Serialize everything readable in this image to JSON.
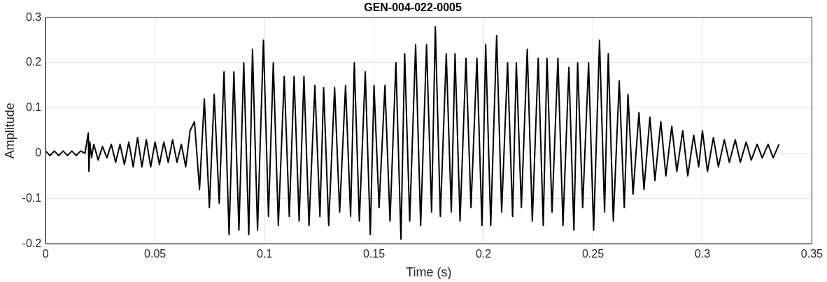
{
  "chart_data": {
    "type": "line",
    "title": "GEN-004-022-0005",
    "xlabel": "Time (s)",
    "ylabel": "Amplitude",
    "xlim": [
      0,
      0.35
    ],
    "xticks": [
      0,
      0.05,
      0.1,
      0.15,
      0.2,
      0.25,
      0.3,
      0.35
    ],
    "ylim": [
      -0.2,
      0.3
    ],
    "yticks": [
      -0.2,
      -0.1,
      0,
      0.1,
      0.2,
      0.3
    ],
    "grid": true,
    "marker": "none",
    "line_style": "solid",
    "series": [
      {
        "color": "#000000",
        "x": [
          0,
          0.002,
          0.004,
          0.006,
          0.008,
          0.01,
          0.012,
          0.014,
          0.016,
          0.018,
          0.0195,
          0.0198,
          0.0202,
          0.021,
          0.022,
          0.024,
          0.026,
          0.028,
          0.03,
          0.032,
          0.034,
          0.036,
          0.038,
          0.04,
          0.042,
          0.044,
          0.046,
          0.048,
          0.05,
          0.052,
          0.054,
          0.056,
          0.058,
          0.06,
          0.062,
          0.064,
          0.066,
          0.068,
          0.0703,
          0.0725,
          0.0748,
          0.077,
          0.0793,
          0.0815,
          0.0838,
          0.086,
          0.0883,
          0.0905,
          0.0928,
          0.0945,
          0.0968,
          0.0995,
          0.1018,
          0.104,
          0.1063,
          0.109,
          0.1113,
          0.1135,
          0.1158,
          0.118,
          0.1203,
          0.123,
          0.1253,
          0.127,
          0.1293,
          0.132,
          0.1343,
          0.137,
          0.1393,
          0.141,
          0.1433,
          0.146,
          0.1483,
          0.15,
          0.1523,
          0.155,
          0.1573,
          0.16,
          0.1623,
          0.164,
          0.1663,
          0.169,
          0.1713,
          0.174,
          0.1763,
          0.178,
          0.1803,
          0.183,
          0.1853,
          0.187,
          0.1893,
          0.192,
          0.1943,
          0.197,
          0.1993,
          0.201,
          0.2033,
          0.206,
          0.2083,
          0.211,
          0.2133,
          0.215,
          0.2173,
          0.22,
          0.2223,
          0.225,
          0.2273,
          0.229,
          0.2313,
          0.234,
          0.2363,
          0.239,
          0.2413,
          0.243,
          0.2453,
          0.248,
          0.2503,
          0.253,
          0.2553,
          0.257,
          0.2593,
          0.262,
          0.2643,
          0.266,
          0.2683,
          0.271,
          0.2733,
          0.276,
          0.2783,
          0.281,
          0.2833,
          0.286,
          0.2883,
          0.291,
          0.2933,
          0.296,
          0.2983,
          0.3,
          0.3023,
          0.305,
          0.3073,
          0.31,
          0.3123,
          0.315,
          0.3173,
          0.32,
          0.3223,
          0.325,
          0.3273,
          0.33,
          0.3323,
          0.335
        ],
        "values": [
          0.005,
          -0.005,
          0.005,
          -0.005,
          0.005,
          -0.005,
          0.005,
          -0.005,
          0.005,
          0,
          0.045,
          -0.04,
          0.025,
          -0.01,
          0.02,
          -0.015,
          0.015,
          -0.01,
          0.02,
          -0.02,
          0.02,
          -0.025,
          0.025,
          -0.03,
          0.035,
          -0.03,
          0.03,
          -0.03,
          0.025,
          -0.025,
          0.025,
          -0.02,
          0.03,
          -0.02,
          0.02,
          -0.03,
          0.05,
          0.07,
          -0.08,
          0.12,
          -0.12,
          0.13,
          -0.11,
          0.18,
          -0.18,
          0.18,
          -0.17,
          0.2,
          -0.18,
          0.23,
          -0.17,
          0.25,
          -0.14,
          0.2,
          -0.16,
          0.17,
          -0.14,
          0.17,
          -0.15,
          0.17,
          -0.16,
          0.15,
          -0.14,
          0.145,
          -0.16,
          0.145,
          -0.13,
          0.15,
          -0.14,
          0.2,
          -0.15,
          0.18,
          -0.18,
          0.15,
          -0.12,
          0.15,
          -0.15,
          0.2,
          -0.19,
          0.22,
          -0.15,
          0.24,
          -0.16,
          0.24,
          -0.13,
          0.28,
          -0.14,
          0.22,
          -0.13,
          0.22,
          -0.15,
          0.21,
          -0.12,
          0.21,
          -0.16,
          0.24,
          -0.16,
          0.26,
          -0.13,
          0.2,
          -0.14,
          0.2,
          -0.12,
          0.23,
          -0.15,
          0.21,
          -0.16,
          0.21,
          -0.13,
          0.21,
          -0.16,
          0.19,
          -0.17,
          0.2,
          -0.12,
          0.2,
          -0.17,
          0.25,
          -0.13,
          0.22,
          -0.15,
          0.16,
          -0.12,
          0.13,
          -0.09,
          0.09,
          -0.08,
          0.08,
          -0.06,
          0.07,
          -0.05,
          0.06,
          -0.04,
          0.05,
          -0.05,
          0.04,
          -0.03,
          0.05,
          -0.04,
          0.035,
          -0.03,
          0.03,
          -0.02,
          0.03,
          -0.02,
          0.025,
          -0.015,
          0.02,
          -0.01,
          0.02,
          -0.01,
          0.02
        ]
      }
    ]
  }
}
